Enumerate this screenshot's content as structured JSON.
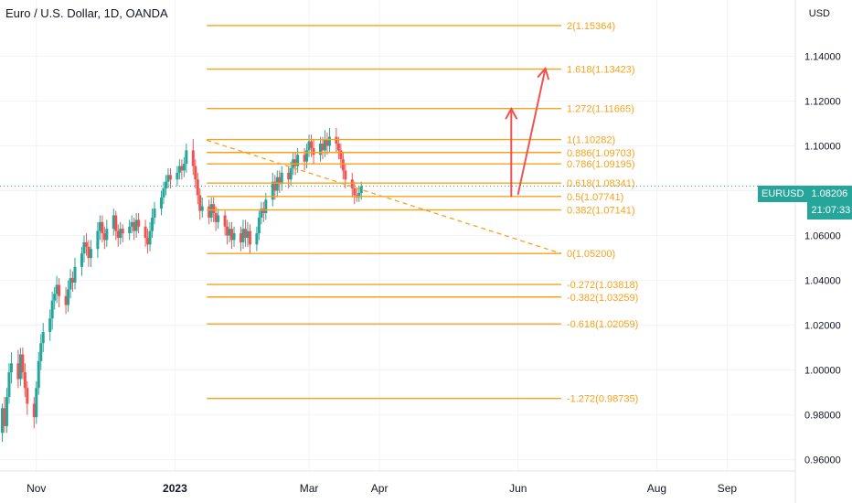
{
  "header": {
    "title": "Euro / U.S. Dollar, 1D, OANDA",
    "currency": "USD"
  },
  "price_tag": {
    "symbol": "EURUSD",
    "price": "1.08206",
    "countdown": "21:07:33"
  },
  "colors": {
    "bull": "#26a69a",
    "bear": "#ef5350",
    "fib": "#f7a21b",
    "arrow": "#ef5350",
    "grid": "#f0f3fa",
    "axis_text": "#131722"
  },
  "chart_data": {
    "type": "candlestick",
    "title": "Euro / U.S. Dollar, 1D, OANDA",
    "y_axis": {
      "unit": "USD",
      "ylim": [
        0.955,
        1.163
      ],
      "tick_values": [
        0.96,
        0.98,
        1.0,
        1.02,
        1.04,
        1.06,
        1.08,
        1.1,
        1.12,
        1.14
      ],
      "tick_labels": [
        "0.96000",
        "0.98000",
        "1.00000",
        "1.02000",
        "1.04000",
        "1.06000",
        "1.08000",
        "1.10000",
        "1.12000",
        "1.14000"
      ]
    },
    "x_axis": {
      "range": [
        "2022-10-16",
        "2023-10-01"
      ],
      "ticks": [
        {
          "label": "Nov",
          "date": "2022-11-01"
        },
        {
          "label": "2023",
          "date": "2023-01-01"
        },
        {
          "label": "Mar",
          "date": "2023-03-01"
        },
        {
          "label": "Apr",
          "date": "2023-04-01"
        },
        {
          "label": "Jun",
          "date": "2023-06-01"
        },
        {
          "label": "Aug",
          "date": "2023-08-01"
        },
        {
          "label": "Sep",
          "date": "2023-09-01"
        }
      ]
    },
    "last_price": 1.08206,
    "fib_levels": [
      {
        "label": "2(1.15364)",
        "value": 1.15364
      },
      {
        "label": "1.618(1.13423)",
        "value": 1.13423
      },
      {
        "label": "1.272(1.11665)",
        "value": 1.11665
      },
      {
        "label": "1(1.10282)",
        "value": 1.10282
      },
      {
        "label": "0.886(1.09703)",
        "value": 1.09703
      },
      {
        "label": "0.786(1.09195)",
        "value": 1.09195
      },
      {
        "label": "0.618(1.08341)",
        "value": 1.08341
      },
      {
        "label": "0.5(1.07741)",
        "value": 1.07741
      },
      {
        "label": "0.382(1.07141)",
        "value": 1.07141
      },
      {
        "label": "0(1.05200)",
        "value": 1.052
      },
      {
        "label": "-0.272(1.03818)",
        "value": 1.03818
      },
      {
        "label": "-0.382(1.03259)",
        "value": 1.03259
      },
      {
        "label": "-0.618(1.02059)",
        "value": 1.02059
      },
      {
        "label": "-1.272(0.98735)",
        "value": 0.98735
      }
    ],
    "fib_range": {
      "start": "2023-01-15",
      "end": "2023-06-20"
    },
    "trend_line": {
      "from": {
        "date": "2023-01-15",
        "value": 1.1025
      },
      "to": {
        "date": "2023-06-20",
        "value": 1.052
      }
    },
    "arrows": [
      {
        "from": {
          "date": "2023-05-29",
          "value": 1.0775
        },
        "to": {
          "date": "2023-05-29",
          "value": 1.1165
        }
      },
      {
        "from": {
          "date": "2023-06-01",
          "value": 1.0785
        },
        "to": {
          "date": "2023-06-13",
          "value": 1.1345
        }
      }
    ],
    "candles_ohlc": [
      [
        0.972,
        0.983,
        0.968,
        0.985
      ],
      [
        0.983,
        0.975,
        0.972,
        0.988
      ],
      [
        0.975,
        0.988,
        0.972,
        0.992
      ],
      [
        0.988,
        0.999,
        0.985,
        1.003
      ],
      [
        0.999,
        1.003,
        0.994,
        1.008
      ],
      [
        1.003,
        0.996,
        0.992,
        1.009
      ],
      [
        0.996,
        1.007,
        0.993,
        1.01
      ],
      [
        1.007,
        0.999,
        0.996,
        1.01
      ],
      [
        0.999,
        0.992,
        0.988,
        1.003
      ],
      [
        0.992,
        0.985,
        0.98,
        0.995
      ],
      [
        0.985,
        0.979,
        0.974,
        0.988
      ],
      [
        0.979,
        0.992,
        0.976,
        0.995
      ],
      [
        0.992,
        1.004,
        0.989,
        1.008
      ],
      [
        1.004,
        1.012,
        1.0,
        1.016
      ],
      [
        1.012,
        1.017,
        1.008,
        1.021
      ],
      [
        1.017,
        1.023,
        1.013,
        1.027
      ],
      [
        1.023,
        1.031,
        1.018,
        1.035
      ],
      [
        1.031,
        1.034,
        1.027,
        1.037
      ],
      [
        1.034,
        1.038,
        1.03,
        1.042
      ],
      [
        1.038,
        1.033,
        1.028,
        1.041
      ],
      [
        1.033,
        1.029,
        1.025,
        1.037
      ],
      [
        1.029,
        1.036,
        1.026,
        1.04
      ],
      [
        1.036,
        1.041,
        1.032,
        1.045
      ],
      [
        1.041,
        1.039,
        1.035,
        1.044
      ],
      [
        1.039,
        1.046,
        1.036,
        1.05
      ],
      [
        1.046,
        1.052,
        1.042,
        1.055
      ],
      [
        1.052,
        1.057,
        1.048,
        1.06
      ],
      [
        1.057,
        1.055,
        1.051,
        1.061
      ],
      [
        1.055,
        1.05,
        1.046,
        1.058
      ],
      [
        1.05,
        1.054,
        1.046,
        1.058
      ],
      [
        1.054,
        1.062,
        1.05,
        1.066
      ],
      [
        1.062,
        1.066,
        1.058,
        1.069
      ],
      [
        1.066,
        1.061,
        1.057,
        1.069
      ],
      [
        1.061,
        1.058,
        1.054,
        1.064
      ],
      [
        1.058,
        1.063,
        1.055,
        1.067
      ],
      [
        1.063,
        1.069,
        1.06,
        1.072
      ],
      [
        1.069,
        1.062,
        1.058,
        1.071
      ],
      [
        1.062,
        1.059,
        1.055,
        1.065
      ],
      [
        1.059,
        1.063,
        1.056,
        1.066
      ],
      [
        1.063,
        1.061,
        1.057,
        1.065
      ],
      [
        1.061,
        1.064,
        1.058,
        1.067
      ],
      [
        1.064,
        1.066,
        1.061,
        1.069
      ],
      [
        1.066,
        1.062,
        1.058,
        1.068
      ],
      [
        1.062,
        1.067,
        1.059,
        1.07
      ],
      [
        1.067,
        1.064,
        1.061,
        1.07
      ],
      [
        1.064,
        1.059,
        1.055,
        1.067
      ],
      [
        1.059,
        1.056,
        1.052,
        1.063
      ],
      [
        1.056,
        1.062,
        1.053,
        1.066
      ],
      [
        1.062,
        1.068,
        1.059,
        1.072
      ],
      [
        1.068,
        1.072,
        1.065,
        1.075
      ],
      [
        1.072,
        1.077,
        1.069,
        1.08
      ],
      [
        1.077,
        1.081,
        1.074,
        1.084
      ],
      [
        1.081,
        1.084,
        1.078,
        1.087
      ],
      [
        1.084,
        1.087,
        1.081,
        1.09
      ],
      [
        1.087,
        1.085,
        1.081,
        1.09
      ],
      [
        1.085,
        1.088,
        1.082,
        1.091
      ],
      [
        1.088,
        1.091,
        1.085,
        1.094
      ],
      [
        1.091,
        1.089,
        1.085,
        1.094
      ],
      [
        1.089,
        1.092,
        1.086,
        1.095
      ],
      [
        1.092,
        1.098,
        1.088,
        1.101
      ],
      [
        1.098,
        1.091,
        1.087,
        1.103
      ],
      [
        1.091,
        1.085,
        1.081,
        1.094
      ],
      [
        1.085,
        1.078,
        1.074,
        1.088
      ],
      [
        1.078,
        1.071,
        1.067,
        1.081
      ],
      [
        1.071,
        1.073,
        1.068,
        1.077
      ],
      [
        1.073,
        1.068,
        1.065,
        1.076
      ],
      [
        1.068,
        1.074,
        1.066,
        1.077
      ],
      [
        1.074,
        1.07,
        1.066,
        1.077
      ],
      [
        1.07,
        1.066,
        1.062,
        1.073
      ],
      [
        1.066,
        1.069,
        1.063,
        1.072
      ],
      [
        1.069,
        1.064,
        1.06,
        1.071
      ],
      [
        1.064,
        1.06,
        1.056,
        1.067
      ],
      [
        1.06,
        1.063,
        1.057,
        1.066
      ],
      [
        1.063,
        1.058,
        1.054,
        1.066
      ],
      [
        1.058,
        1.061,
        1.055,
        1.064
      ],
      [
        1.061,
        1.057,
        1.053,
        1.064
      ],
      [
        1.057,
        1.063,
        1.054,
        1.067
      ],
      [
        1.063,
        1.059,
        1.055,
        1.067
      ],
      [
        1.059,
        1.062,
        1.055,
        1.066
      ],
      [
        1.062,
        1.056,
        1.052,
        1.065
      ],
      [
        1.056,
        1.061,
        1.053,
        1.064
      ],
      [
        1.061,
        1.068,
        1.058,
        1.071
      ],
      [
        1.068,
        1.072,
        1.065,
        1.075
      ],
      [
        1.072,
        1.07,
        1.066,
        1.075
      ],
      [
        1.07,
        1.076,
        1.067,
        1.079
      ],
      [
        1.076,
        1.084,
        1.073,
        1.088
      ],
      [
        1.084,
        1.08,
        1.076,
        1.087
      ],
      [
        1.08,
        1.086,
        1.077,
        1.089
      ],
      [
        1.086,
        1.083,
        1.079,
        1.089
      ],
      [
        1.083,
        1.088,
        1.08,
        1.091
      ],
      [
        1.088,
        1.085,
        1.081,
        1.091
      ],
      [
        1.085,
        1.09,
        1.082,
        1.093
      ],
      [
        1.09,
        1.094,
        1.087,
        1.097
      ],
      [
        1.094,
        1.091,
        1.087,
        1.097
      ],
      [
        1.091,
        1.096,
        1.088,
        1.099
      ],
      [
        1.096,
        1.093,
        1.089,
        1.099
      ],
      [
        1.093,
        1.098,
        1.09,
        1.101
      ],
      [
        1.098,
        1.102,
        1.095,
        1.105
      ],
      [
        1.102,
        1.099,
        1.095,
        1.105
      ],
      [
        1.099,
        1.096,
        1.092,
        1.103
      ],
      [
        1.096,
        1.101,
        1.093,
        1.104
      ],
      [
        1.101,
        1.098,
        1.094,
        1.104
      ],
      [
        1.098,
        1.103,
        1.095,
        1.107
      ],
      [
        1.103,
        1.1,
        1.096,
        1.106
      ],
      [
        1.1,
        1.104,
        1.097,
        1.108
      ],
      [
        1.104,
        1.101,
        1.097,
        1.108
      ],
      [
        1.101,
        1.098,
        1.094,
        1.104
      ],
      [
        1.098,
        1.094,
        1.09,
        1.101
      ],
      [
        1.094,
        1.089,
        1.085,
        1.097
      ],
      [
        1.089,
        1.085,
        1.081,
        1.092
      ],
      [
        1.085,
        1.081,
        1.077,
        1.088
      ],
      [
        1.081,
        1.078,
        1.074,
        1.084
      ],
      [
        1.078,
        1.077,
        1.075,
        1.081
      ],
      [
        1.077,
        1.079,
        1.075,
        1.082
      ],
      [
        1.079,
        1.082,
        1.076,
        1.084
      ]
    ]
  }
}
